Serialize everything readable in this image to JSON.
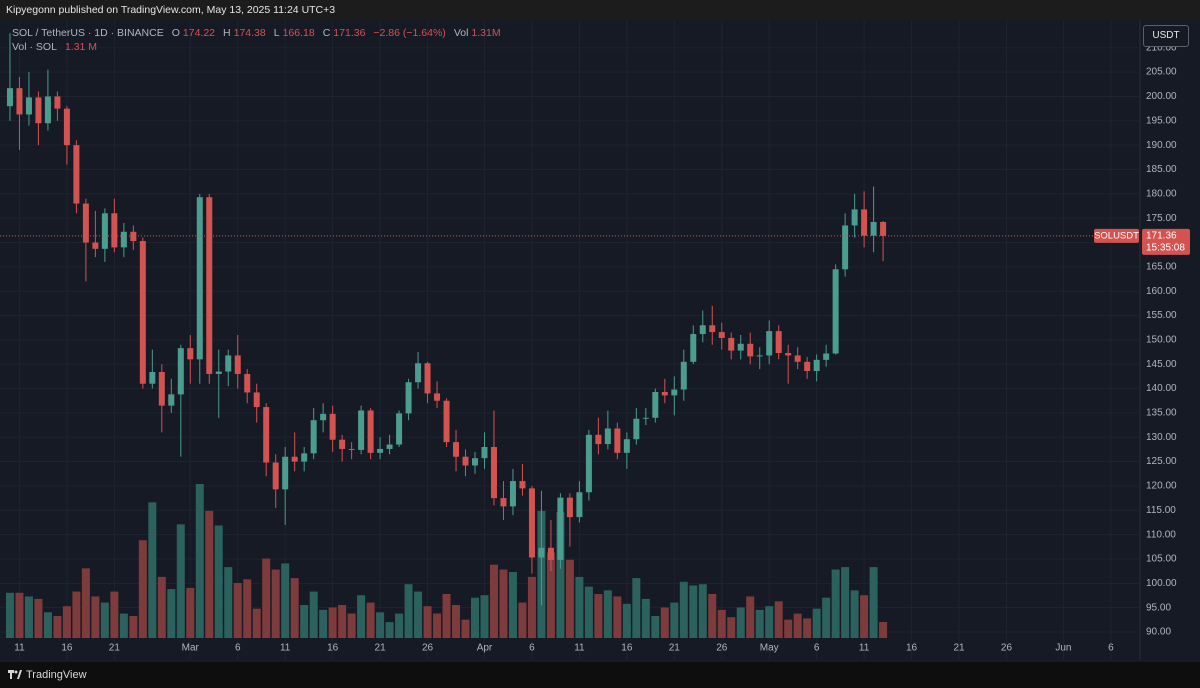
{
  "header": {
    "publisher": "Kipyegonn published on TradingView.com, May 13, 2025 11:24 UTC+3",
    "brand": "TradingView"
  },
  "chart_data": {
    "type": "candlestick",
    "symbol": "SOL / TetherUS · 1D · BINANCE",
    "ohlc_labels": [
      "O",
      "H",
      "L",
      "C"
    ],
    "change": "−2.86 (−1.64%)",
    "volume_label": "Vol",
    "volume_value_label": "1.31M",
    "volume_pane_title": "Vol · SOL",
    "volume_pane_value_label": "1.31 M",
    "currency": "USDT",
    "ticker": "SOLUSDT",
    "countdown": "15:35:08",
    "open": [
      198,
      201.7,
      196.3,
      199.8,
      194.5,
      200.0,
      197.5,
      190.0,
      178.0,
      170.0,
      168.7,
      176.0,
      169.0,
      172.2,
      170.3,
      141.0,
      143.4,
      136.5,
      138.8,
      148.3,
      146.0,
      179.3,
      143.0,
      143.5,
      146.8,
      143.0,
      139.2,
      136.2,
      124.8,
      119.3,
      126.0,
      125.0,
      126.7,
      133.5,
      134.8,
      129.5,
      127.6,
      127.4,
      135.5,
      126.8,
      127.6,
      128.5,
      134.9,
      141.3,
      145.2,
      139.0,
      137.5,
      129.0,
      126.0,
      124.2,
      125.7,
      128.0,
      117.5,
      115.8,
      121.0,
      119.5,
      105.3,
      107.3,
      104.8,
      117.6,
      113.6,
      118.7,
      130.5,
      128.6,
      131.8,
      126.8,
      129.6,
      133.8,
      134.0,
      139.3,
      138.6,
      139.8,
      145.5,
      151.2,
      153.0,
      151.6,
      150.4,
      147.8,
      149.2,
      146.6,
      146.8,
      151.8,
      147.3,
      146.8,
      145.5,
      143.6,
      145.9,
      147.2,
      164.5,
      173.5,
      176.8,
      171.4,
      174.22
    ],
    "high": [
      213,
      204,
      205,
      201,
      205.5,
      201,
      198,
      191,
      179,
      176.5,
      177,
      179,
      174,
      173.5,
      171,
      148,
      145,
      142,
      149,
      151,
      180,
      180,
      148,
      148,
      151,
      144,
      141,
      137,
      126.5,
      128,
      131,
      128,
      136,
      137,
      136.5,
      130.5,
      129,
      136.5,
      136,
      130,
      130.5,
      135.5,
      142,
      147.5,
      145.5,
      141.5,
      138,
      131.5,
      127.5,
      127,
      131,
      135.5,
      121,
      123.5,
      124.5,
      120,
      119,
      113,
      118.5,
      118.5,
      121,
      131.5,
      134,
      135.5,
      133,
      131,
      136,
      136,
      140,
      142,
      142.5,
      148,
      153,
      156,
      157,
      153.5,
      151.5,
      151,
      151.5,
      148.5,
      154,
      153,
      149,
      148.5,
      146.5,
      147,
      149,
      165.5,
      176,
      180,
      180.5,
      181.5,
      174.38
    ],
    "low": [
      195,
      189,
      194,
      190,
      193,
      195,
      186,
      176,
      162,
      167,
      166,
      168,
      167,
      168.5,
      140,
      140,
      131,
      135,
      126,
      141,
      141,
      141,
      134,
      140.5,
      140,
      137,
      133,
      122,
      115.5,
      112,
      123,
      123,
      125.5,
      131,
      127,
      125,
      125.5,
      126.5,
      125.5,
      125.5,
      126.5,
      128,
      133.5,
      140,
      137,
      136,
      128,
      123,
      122,
      122.5,
      123.5,
      116,
      113,
      114,
      118,
      102,
      95.5,
      102.5,
      103,
      107.5,
      112.5,
      117,
      126.5,
      127.5,
      125.5,
      123.5,
      128.5,
      132.5,
      133,
      137,
      134.5,
      137.5,
      145,
      149.5,
      149,
      148,
      146,
      146,
      145,
      144,
      145,
      146,
      141,
      144,
      142,
      141.5,
      144.5,
      147,
      163,
      171,
      169,
      168,
      166.18
    ],
    "close": [
      201.7,
      196.3,
      199.8,
      194.5,
      200.0,
      197.5,
      190.0,
      178.0,
      170.0,
      168.7,
      176.0,
      169.0,
      172.2,
      170.3,
      141.0,
      143.4,
      136.5,
      138.8,
      148.3,
      146.0,
      179.3,
      143.0,
      143.5,
      146.8,
      143.0,
      139.2,
      136.2,
      124.8,
      119.3,
      126.0,
      125.0,
      126.7,
      133.5,
      134.8,
      129.5,
      127.6,
      127.4,
      135.5,
      126.8,
      127.6,
      128.5,
      134.9,
      141.3,
      145.2,
      139.0,
      137.5,
      129.0,
      126.0,
      124.2,
      125.7,
      128.0,
      117.5,
      115.8,
      121.0,
      119.5,
      105.3,
      107.3,
      104.8,
      117.6,
      113.6,
      118.7,
      130.5,
      128.6,
      131.8,
      126.8,
      129.6,
      133.8,
      134.0,
      139.3,
      138.6,
      139.8,
      145.5,
      151.2,
      153.0,
      151.6,
      150.4,
      147.8,
      149.2,
      146.6,
      146.8,
      151.8,
      147.3,
      146.8,
      145.5,
      143.6,
      145.9,
      147.2,
      164.5,
      173.5,
      176.8,
      171.4,
      174.22,
      171.36
    ],
    "volume": [
      3.7,
      3.7,
      3.4,
      3.2,
      2.1,
      1.8,
      2.6,
      3.8,
      5.7,
      3.4,
      2.9,
      3.8,
      2.0,
      1.8,
      8.0,
      11.1,
      5.0,
      4.0,
      9.3,
      4.1,
      12.6,
      10.4,
      9.2,
      5.8,
      4.5,
      4.8,
      2.4,
      6.5,
      5.6,
      6.1,
      4.9,
      2.7,
      3.8,
      2.3,
      2.5,
      2.7,
      2.0,
      3.5,
      2.9,
      2.1,
      1.3,
      2.0,
      4.4,
      3.8,
      2.6,
      2.0,
      3.6,
      2.7,
      1.5,
      3.3,
      3.5,
      6.0,
      5.6,
      5.4,
      2.9,
      5.0,
      10.4,
      7.0,
      10.3,
      6.4,
      5.0,
      4.2,
      3.6,
      3.9,
      3.4,
      2.8,
      4.9,
      3.2,
      1.8,
      2.5,
      2.9,
      4.6,
      4.3,
      4.4,
      3.6,
      2.3,
      1.7,
      2.5,
      3.4,
      2.3,
      2.6,
      3.0,
      1.5,
      2.0,
      1.6,
      2.4,
      3.3,
      5.6,
      5.8,
      3.9,
      3.5,
      5.8,
      1.31
    ],
    "up_color": "#4a9d8f",
    "down_color": "#d35351",
    "volume_up_color": "#2b625e",
    "volume_down_color": "#7e3b3c",
    "ylim": [
      84.25,
      215.7
    ],
    "yticks": [
      {
        "value": 90,
        "label": "90.00"
      },
      {
        "value": 95,
        "label": "95.00"
      },
      {
        "value": 100,
        "label": "100.00"
      },
      {
        "value": 105,
        "label": "105.00"
      },
      {
        "value": 110,
        "label": "110.00"
      },
      {
        "value": 115,
        "label": "115.00"
      },
      {
        "value": 120,
        "label": "120.00"
      },
      {
        "value": 125,
        "label": "125.00"
      },
      {
        "value": 130,
        "label": "130.00"
      },
      {
        "value": 135,
        "label": "135.00"
      },
      {
        "value": 140,
        "label": "140.00"
      },
      {
        "value": 145,
        "label": "145.00"
      },
      {
        "value": 150,
        "label": "150.00"
      },
      {
        "value": 155,
        "label": "155.00"
      },
      {
        "value": 160,
        "label": "160.00"
      },
      {
        "value": 165,
        "label": "165.00"
      },
      {
        "value": 170,
        "label": "170.00"
      },
      {
        "value": 175,
        "label": "175.00"
      },
      {
        "value": 180,
        "label": "180.00"
      },
      {
        "value": 185,
        "label": "185.00"
      },
      {
        "value": 190,
        "label": "190.00"
      },
      {
        "value": 195,
        "label": "195.00"
      },
      {
        "value": 200,
        "label": "200.00"
      },
      {
        "value": 205,
        "label": "205.00"
      },
      {
        "value": 210,
        "label": "210.00"
      }
    ],
    "xlim": [
      -1.05,
      119.07
    ],
    "xticks": [
      {
        "value": 1,
        "label": "11"
      },
      {
        "value": 6,
        "label": "16"
      },
      {
        "value": 11,
        "label": "21"
      },
      {
        "value": 19,
        "label": "Mar"
      },
      {
        "value": 24,
        "label": "6"
      },
      {
        "value": 29,
        "label": "11"
      },
      {
        "value": 34,
        "label": "16"
      },
      {
        "value": 39,
        "label": "21"
      },
      {
        "value": 44,
        "label": "26"
      },
      {
        "value": 50,
        "label": "Apr"
      },
      {
        "value": 55,
        "label": "6"
      },
      {
        "value": 60,
        "label": "11"
      },
      {
        "value": 65,
        "label": "16"
      },
      {
        "value": 70,
        "label": "21"
      },
      {
        "value": 75,
        "label": "26"
      },
      {
        "value": 80,
        "label": "May"
      },
      {
        "value": 85,
        "label": "6"
      },
      {
        "value": 90,
        "label": "11"
      },
      {
        "value": 95,
        "label": "16"
      },
      {
        "value": 100,
        "label": "21"
      },
      {
        "value": 105,
        "label": "26"
      },
      {
        "value": 111,
        "label": "Jun"
      },
      {
        "value": 116,
        "label": "6"
      }
    ],
    "grid": true
  }
}
